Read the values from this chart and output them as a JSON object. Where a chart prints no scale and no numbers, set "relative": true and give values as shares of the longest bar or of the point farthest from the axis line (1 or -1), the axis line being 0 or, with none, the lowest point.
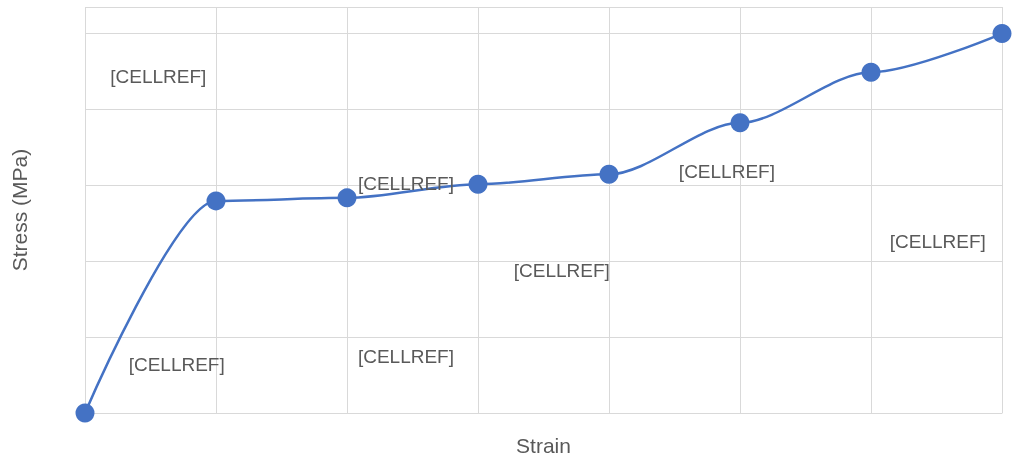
{
  "chart_data": {
    "type": "line",
    "relative": true,
    "xlabel": "Strain",
    "ylabel": "Stress (MPa)",
    "categories": [
      null,
      null,
      null,
      null,
      null,
      null,
      null,
      null
    ],
    "values": [
      0,
      0.559,
      0.567,
      0.603,
      0.629,
      0.765,
      0.898,
      1
    ],
    "color": "#4472c4",
    "marker": "circle",
    "line_style": "solid",
    "grid": true,
    "annotations": [
      "[CELLREF]",
      "[CELLREF]",
      "[CELLREF]",
      "[CELLREF]",
      "[CELLREF]",
      "[CELLREF]",
      "[CELLREF]"
    ]
  }
}
